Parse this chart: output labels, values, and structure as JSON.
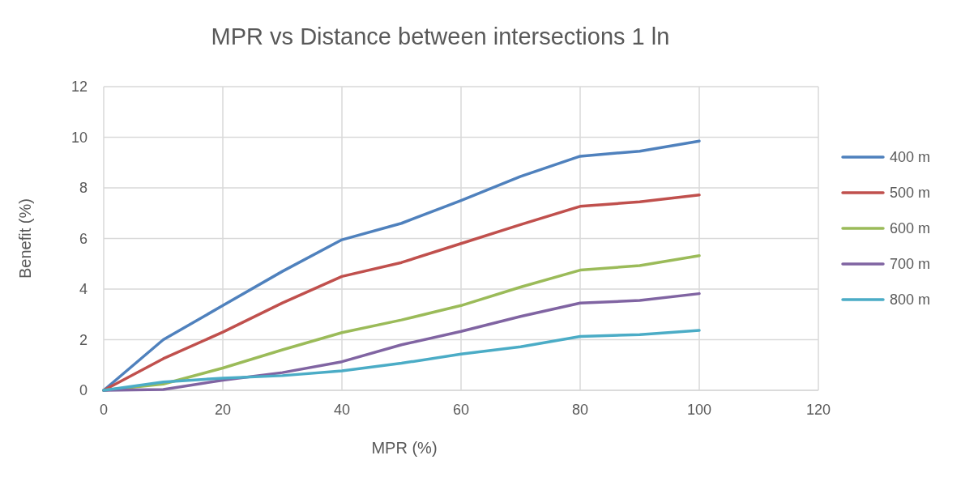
{
  "chart_data": {
    "type": "line",
    "title": "MPR vs Distance between intersections 1 ln",
    "xlabel": "MPR (%)",
    "ylabel": "Benefit (%)",
    "x": [
      0,
      10,
      20,
      30,
      40,
      50,
      60,
      70,
      80,
      90,
      100
    ],
    "series": [
      {
        "name": "400 m",
        "color": "#4f81bd",
        "values": [
          0,
          2.0,
          3.35,
          4.7,
          5.95,
          6.6,
          7.5,
          8.45,
          9.25,
          9.45,
          9.85
        ]
      },
      {
        "name": "500 m",
        "color": "#c0504d",
        "values": [
          0,
          1.25,
          2.3,
          3.45,
          4.5,
          5.05,
          5.8,
          6.55,
          7.27,
          7.45,
          7.72
        ]
      },
      {
        "name": "600 m",
        "color": "#9bbb59",
        "values": [
          0,
          0.25,
          0.88,
          1.6,
          2.28,
          2.78,
          3.35,
          4.08,
          4.75,
          4.93,
          5.32
        ]
      },
      {
        "name": "700 m",
        "color": "#8064a2",
        "values": [
          0,
          0.03,
          0.4,
          0.7,
          1.13,
          1.8,
          2.33,
          2.92,
          3.45,
          3.55,
          3.82
        ]
      },
      {
        "name": "800 m",
        "color": "#4bacc6",
        "values": [
          0,
          0.33,
          0.48,
          0.58,
          0.77,
          1.07,
          1.43,
          1.72,
          2.13,
          2.2,
          2.37
        ]
      }
    ],
    "xlim": [
      0,
      120
    ],
    "xticks": [
      0,
      20,
      40,
      60,
      80,
      100,
      120
    ],
    "ylim": [
      0,
      12
    ],
    "yticks": [
      0,
      2,
      4,
      6,
      8,
      10,
      12
    ],
    "grid": true,
    "legend": "right",
    "marker": "none",
    "line_style": "solid"
  }
}
